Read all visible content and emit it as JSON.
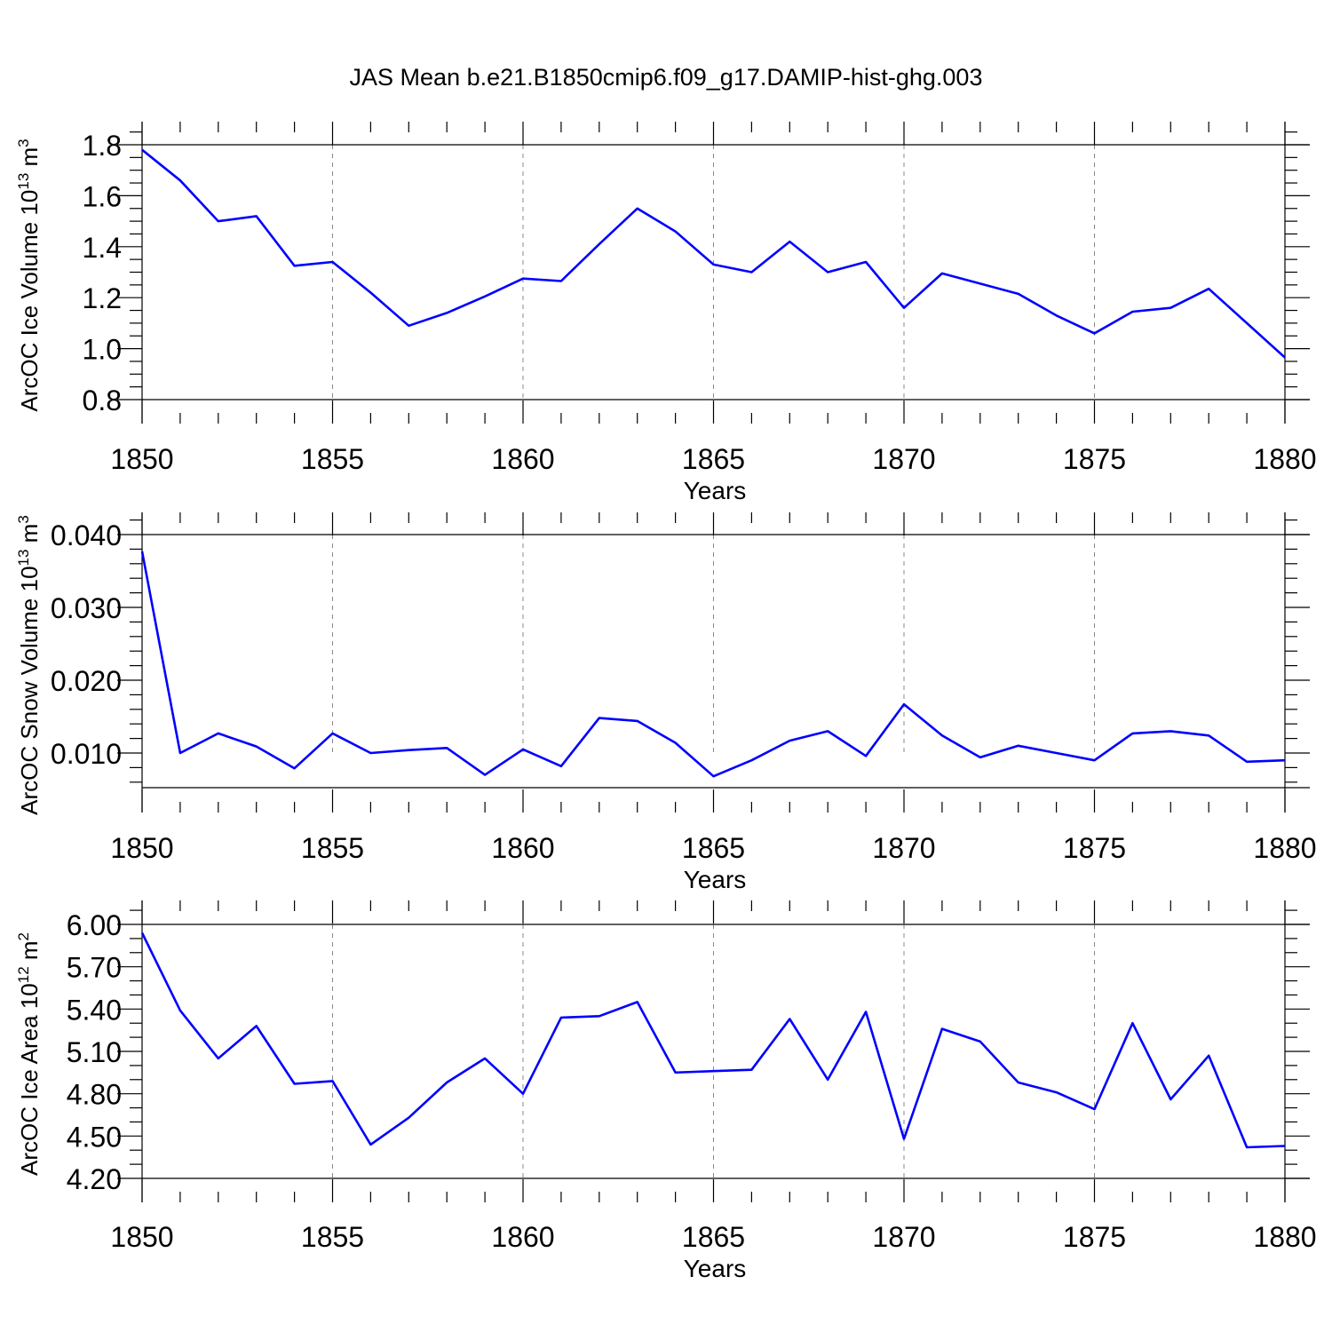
{
  "title": "JAS Mean b.e21.B1850cmip6.f09_g17.DAMIP-hist-ghg.003",
  "chart_data": [
    {
      "type": "line",
      "title": "",
      "xlabel": "Years",
      "ylabel": "ArcOC Ice Volume 10",
      "ylabel_exp": "13",
      "ylabel_unit": " m",
      "ylabel_unit_exp": "3",
      "xlim": [
        1850,
        1880
      ],
      "ylim": [
        0.8,
        1.9
      ],
      "xticks": [
        1850,
        1855,
        1860,
        1865,
        1870,
        1875,
        1880
      ],
      "xtick_labels": [
        "1850",
        "1855",
        "1860",
        "1865",
        "1870",
        "1875",
        "1880"
      ],
      "yticks": [
        0.8,
        1.0,
        1.2,
        1.4,
        1.6,
        1.8
      ],
      "ytick_labels": [
        "0.8",
        "1.0",
        "1.2",
        "1.4",
        "1.6",
        "1.8"
      ],
      "yminor_step": 0.05,
      "grid": "dashed vertical at major x ticks",
      "series": [
        {
          "name": "ArcOC Ice Volume",
          "color": "#0000ff",
          "x": [
            1850,
            1851,
            1852,
            1853,
            1854,
            1855,
            1856,
            1857,
            1858,
            1859,
            1860,
            1861,
            1862,
            1863,
            1864,
            1865,
            1866,
            1867,
            1868,
            1869,
            1870,
            1871,
            1872,
            1873,
            1874,
            1875,
            1876,
            1877,
            1878,
            1879,
            1880
          ],
          "values": [
            1.78,
            1.66,
            1.5,
            1.52,
            1.325,
            1.34,
            1.22,
            1.09,
            1.14,
            1.205,
            1.275,
            1.265,
            1.41,
            1.55,
            1.46,
            1.33,
            1.3,
            1.42,
            1.3,
            1.34,
            1.16,
            1.295,
            1.255,
            1.215,
            1.13,
            1.06,
            1.145,
            1.16,
            1.235,
            1.1,
            0.965
          ]
        }
      ]
    },
    {
      "type": "line",
      "title": "",
      "xlabel": "Years",
      "ylabel": "ArcOC Snow Volume 10",
      "ylabel_exp": "13",
      "ylabel_unit": " m",
      "ylabel_unit_exp": "3",
      "xlim": [
        1850,
        1880
      ],
      "ylim": [
        0.005,
        0.0435
      ],
      "xticks": [
        1850,
        1855,
        1860,
        1865,
        1870,
        1875,
        1880
      ],
      "xtick_labels": [
        "1850",
        "1855",
        "1860",
        "1865",
        "1870",
        "1875",
        "1880"
      ],
      "yticks": [
        0.01,
        0.02,
        0.03,
        0.04
      ],
      "ytick_labels": [
        "0.010",
        "0.020",
        "0.030",
        "0.040"
      ],
      "yminor_step": 0.002,
      "grid": "dashed vertical at major x ticks",
      "series": [
        {
          "name": "ArcOC Snow Volume",
          "color": "#0000ff",
          "x": [
            1850,
            1851,
            1852,
            1853,
            1854,
            1855,
            1856,
            1857,
            1858,
            1859,
            1860,
            1861,
            1862,
            1863,
            1864,
            1865,
            1866,
            1867,
            1868,
            1869,
            1870,
            1871,
            1872,
            1873,
            1874,
            1875,
            1876,
            1877,
            1878,
            1879,
            1880
          ],
          "values": [
            0.0377,
            0.01,
            0.0127,
            0.0109,
            0.0079,
            0.0127,
            0.01,
            0.0104,
            0.0107,
            0.007,
            0.0105,
            0.0082,
            0.0148,
            0.0144,
            0.0114,
            0.0068,
            0.009,
            0.0117,
            0.013,
            0.0096,
            0.0167,
            0.0124,
            0.0094,
            0.011,
            0.01,
            0.009,
            0.0127,
            0.013,
            0.0124,
            0.0088,
            0.009
          ]
        }
      ]
    },
    {
      "type": "line",
      "title": "",
      "xlabel": "Years",
      "ylabel": "ArcOC Ice Area 10",
      "ylabel_exp": "12",
      "ylabel_unit": " m",
      "ylabel_unit_exp": "2",
      "xlim": [
        1850,
        1880
      ],
      "ylim": [
        4.2,
        6.17
      ],
      "xticks": [
        1850,
        1855,
        1860,
        1865,
        1870,
        1875,
        1880
      ],
      "xtick_labels": [
        "1850",
        "1855",
        "1860",
        "1865",
        "1870",
        "1875",
        "1880"
      ],
      "yticks": [
        4.2,
        4.5,
        4.8,
        5.1,
        5.4,
        5.7,
        6.0
      ],
      "ytick_labels": [
        "4.20",
        "4.50",
        "4.80",
        "5.10",
        "5.40",
        "5.70",
        "6.00"
      ],
      "yminor_step": 0.1,
      "grid": "dashed vertical at major x ticks",
      "series": [
        {
          "name": "ArcOC Ice Area",
          "color": "#0000ff",
          "x": [
            1850,
            1851,
            1852,
            1853,
            1854,
            1855,
            1856,
            1857,
            1858,
            1859,
            1860,
            1861,
            1862,
            1863,
            1864,
            1865,
            1866,
            1867,
            1868,
            1869,
            1870,
            1871,
            1872,
            1873,
            1874,
            1875,
            1876,
            1877,
            1878,
            1879,
            1880
          ],
          "values": [
            5.94,
            5.39,
            5.05,
            5.28,
            4.87,
            4.89,
            4.44,
            4.63,
            4.88,
            5.05,
            4.8,
            5.34,
            5.35,
            5.45,
            4.95,
            4.96,
            4.97,
            5.33,
            4.9,
            5.38,
            4.48,
            5.26,
            5.17,
            4.88,
            4.81,
            4.69,
            5.3,
            4.76,
            5.07,
            4.42,
            4.43
          ]
        }
      ]
    }
  ]
}
